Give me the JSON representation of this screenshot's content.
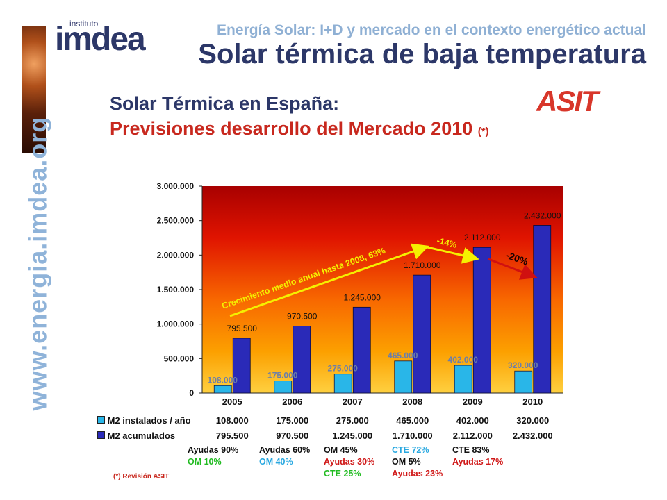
{
  "header": {
    "logo_small": "instituto",
    "logo_main": "imdea",
    "subtitle": "Energía Solar: I+D y mercado en el contexto energético actual",
    "title": "Solar térmica de baja temperatura",
    "side_url": "www.energia.imdea.org"
  },
  "slide": {
    "heading1": "Solar Térmica en España:",
    "heading2": "Previsiones desarrollo del Mercado 2010",
    "heading2_mark": "(*)",
    "logo_asit": "ASIT",
    "footnote": "(*) Revisión ASIT"
  },
  "chart_data": {
    "type": "bar",
    "categories": [
      "2005",
      "2006",
      "2007",
      "2008",
      "2009",
      "2010"
    ],
    "ylim": [
      0,
      3000000
    ],
    "yticks": [
      "0",
      "500.000",
      "1.000.000",
      "1.500.000",
      "2.000.000",
      "2.500.000",
      "3.000.000"
    ],
    "ytick_values": [
      0,
      500000,
      1000000,
      1500000,
      2000000,
      2500000,
      3000000
    ],
    "series": [
      {
        "name": "M2 instalados / año",
        "values": [
          108000,
          175000,
          275000,
          465000,
          402000,
          320000
        ],
        "labels": [
          "108.000",
          "175.000",
          "275.000",
          "465.000",
          "402.000",
          "320.000"
        ],
        "color": "#29b6e8"
      },
      {
        "name": "M2 acumulados",
        "values": [
          795500,
          970500,
          1245000,
          1710000,
          2112000,
          2432000
        ],
        "labels": [
          "795.500",
          "970.500",
          "1.245.000",
          "1.710.000",
          "2.112.000",
          "2.432.000"
        ],
        "color": "#2a2ab8"
      }
    ],
    "annotations": [
      {
        "text": "Crecimiento medio anual hasta 2008, 63%",
        "color": "#f5f000"
      },
      {
        "text": "-14%",
        "color": "#f5f000"
      },
      {
        "text": "-20%",
        "color": "#d01010"
      }
    ],
    "legend_position": "bottom-left"
  },
  "notes": [
    [
      {
        "text": "Ayudas 90%",
        "color": "#111111"
      },
      {
        "text": "OM 10%",
        "color": "#22bb22"
      }
    ],
    [
      {
        "text": "Ayudas 60%",
        "color": "#111111"
      },
      {
        "text": "OM 40%",
        "color": "#29a8e0"
      }
    ],
    [
      {
        "text": "OM 45%",
        "color": "#111111"
      },
      {
        "text": "Ayudas 30%",
        "color": "#d01818"
      },
      {
        "text": "CTE  25%",
        "color": "#22bb22"
      }
    ],
    [
      {
        "text": "CTE  72%",
        "color": "#29a8e0"
      },
      {
        "text": "OM 5%",
        "color": "#111111"
      },
      {
        "text": "Ayudas 23%",
        "color": "#d01818"
      }
    ],
    [
      {
        "text": "CTE  83%",
        "color": "#111111"
      },
      {
        "text": "Ayudas 17%",
        "color": "#d01818"
      }
    ]
  ]
}
